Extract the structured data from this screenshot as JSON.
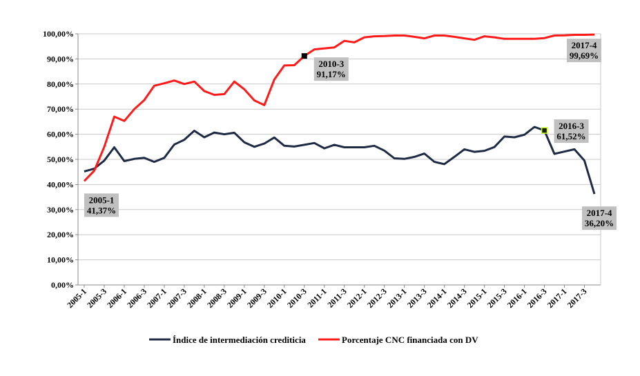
{
  "chart_data": {
    "type": "line",
    "title": "",
    "xlabel": "",
    "ylabel": "",
    "ylim": [
      0,
      100
    ],
    "y_ticks": [
      "0,00%",
      "10,00%",
      "20,00%",
      "30,00%",
      "40,00%",
      "50,00%",
      "60,00%",
      "70,00%",
      "80,00%",
      "90,00%",
      "100,00%"
    ],
    "categories": [
      "2005-1",
      "2005-2",
      "2005-3",
      "2005-4",
      "2006-1",
      "2006-2",
      "2006-3",
      "2006-4",
      "2007-1",
      "2007-2",
      "2007-3",
      "2007-4",
      "2008-1",
      "2008-2",
      "2008-3",
      "2008-4",
      "2009-1",
      "2009-2",
      "2009-3",
      "2009-4",
      "2010-1",
      "2010-2",
      "2010-3",
      "2010-4",
      "2011-1",
      "2011-2",
      "2011-3",
      "2011-4",
      "2012-1",
      "2012-2",
      "2012-3",
      "2012-4",
      "2013-1",
      "2013-2",
      "2013-3",
      "2013-4",
      "2014-1",
      "2014-2",
      "2014-3",
      "2014-4",
      "2015-1",
      "2015-2",
      "2015-3",
      "2015-4",
      "2016-1",
      "2016-2",
      "2016-3",
      "2016-4",
      "2017-1",
      "2017-2",
      "2017-3",
      "2017-4"
    ],
    "x_tick_labels": [
      "2005-1",
      "2005-3",
      "2006-1",
      "2006-3",
      "2007-1",
      "2007-3",
      "2008-1",
      "2008-3",
      "2009-1",
      "2009-3",
      "2010-1",
      "2010-3",
      "2011-1",
      "2011-3",
      "2012-1",
      "2012-3",
      "2013-1",
      "2013-3",
      "2014-1",
      "2014-3",
      "2015-1",
      "2015-3",
      "2016-1",
      "2016-3",
      "2017-1",
      "2017-3"
    ],
    "series": [
      {
        "name": "Índice de intermediación crediticia",
        "color": "#1f2a44",
        "values": [
          45.2,
          46.3,
          49.5,
          54.8,
          49.3,
          50.2,
          50.6,
          49.0,
          50.6,
          55.9,
          57.8,
          61.4,
          58.8,
          60.7,
          60.0,
          60.6,
          56.8,
          55.0,
          56.3,
          58.7,
          55.4,
          55.1,
          55.8,
          56.5,
          54.4,
          55.8,
          54.8,
          54.8,
          54.8,
          55.4,
          53.5,
          50.4,
          50.2,
          51.0,
          52.3,
          49.0,
          48.1,
          51.0,
          54.0,
          53.0,
          53.4,
          54.9,
          59.1,
          58.8,
          59.8,
          62.9,
          61.52,
          52.2,
          53.1,
          54.0,
          49.5,
          36.2
        ]
      },
      {
        "name": "Porcentaje CNC financiada con DV",
        "color": "#ff1a1a",
        "values": [
          41.37,
          45.5,
          55.0,
          67.0,
          65.3,
          70.0,
          73.6,
          79.3,
          80.3,
          81.4,
          80.0,
          81.0,
          77.2,
          75.7,
          76.0,
          81.0,
          77.9,
          73.5,
          71.6,
          81.8,
          87.4,
          87.5,
          91.17,
          93.8,
          94.2,
          94.6,
          97.2,
          96.6,
          98.6,
          99.0,
          99.1,
          99.3,
          99.3,
          98.8,
          98.2,
          99.3,
          99.3,
          98.8,
          98.2,
          97.6,
          99.0,
          98.6,
          98.0,
          98.0,
          98.0,
          98.0,
          98.3,
          99.3,
          99.4,
          99.6,
          99.6,
          99.69
        ]
      }
    ],
    "annotations": [
      {
        "series": 1,
        "index": 0,
        "label": "2005-1",
        "value_label": "41,37%"
      },
      {
        "series": 1,
        "index": 22,
        "label": "2010-3",
        "value_label": "91,17%"
      },
      {
        "series": 1,
        "index": 51,
        "label": "2017-4",
        "value_label": "99,69%"
      },
      {
        "series": 0,
        "index": 46,
        "label": "2016-3",
        "value_label": "61,52%"
      },
      {
        "series": 0,
        "index": 51,
        "label": "2017-4",
        "value_label": "36,20%"
      }
    ],
    "legend": {
      "position": "bottom",
      "items": [
        "Índice de intermediación crediticia",
        "Porcentaje CNC financiada con DV"
      ]
    },
    "grid": true
  }
}
